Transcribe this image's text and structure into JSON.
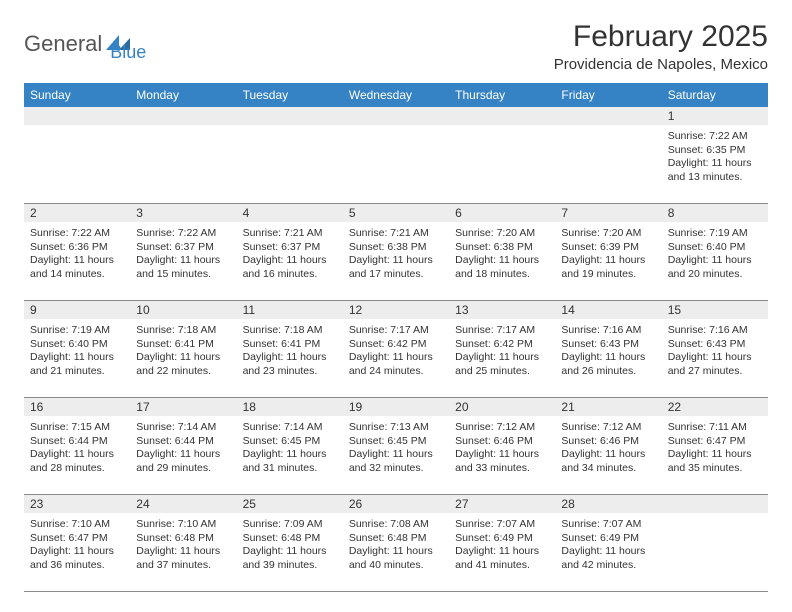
{
  "brand": {
    "part1": "General",
    "part2": "Blue"
  },
  "title": "February 2025",
  "location": "Providencia de Napoles, Mexico",
  "colors": {
    "header_bg": "#3582c4",
    "header_text": "#ffffff",
    "daynum_bg": "#ededed",
    "text": "#333333",
    "divider": "#8a8a8a",
    "background": "#ffffff",
    "brand_blue": "#3582c4",
    "brand_gray": "#555555"
  },
  "typography": {
    "title_fontsize": 30,
    "location_fontsize": 15,
    "header_fontsize": 12,
    "daynum_fontsize": 12,
    "details_fontsize": 10.5
  },
  "day_headers": [
    "Sunday",
    "Monday",
    "Tuesday",
    "Wednesday",
    "Thursday",
    "Friday",
    "Saturday"
  ],
  "weeks": [
    {
      "nums": [
        "",
        "",
        "",
        "",
        "",
        "",
        "1"
      ],
      "details": [
        "",
        "",
        "",
        "",
        "",
        "",
        "Sunrise: 7:22 AM\nSunset: 6:35 PM\nDaylight: 11 hours and 13 minutes."
      ]
    },
    {
      "nums": [
        "2",
        "3",
        "4",
        "5",
        "6",
        "7",
        "8"
      ],
      "details": [
        "Sunrise: 7:22 AM\nSunset: 6:36 PM\nDaylight: 11 hours and 14 minutes.",
        "Sunrise: 7:22 AM\nSunset: 6:37 PM\nDaylight: 11 hours and 15 minutes.",
        "Sunrise: 7:21 AM\nSunset: 6:37 PM\nDaylight: 11 hours and 16 minutes.",
        "Sunrise: 7:21 AM\nSunset: 6:38 PM\nDaylight: 11 hours and 17 minutes.",
        "Sunrise: 7:20 AM\nSunset: 6:38 PM\nDaylight: 11 hours and 18 minutes.",
        "Sunrise: 7:20 AM\nSunset: 6:39 PM\nDaylight: 11 hours and 19 minutes.",
        "Sunrise: 7:19 AM\nSunset: 6:40 PM\nDaylight: 11 hours and 20 minutes."
      ]
    },
    {
      "nums": [
        "9",
        "10",
        "11",
        "12",
        "13",
        "14",
        "15"
      ],
      "details": [
        "Sunrise: 7:19 AM\nSunset: 6:40 PM\nDaylight: 11 hours and 21 minutes.",
        "Sunrise: 7:18 AM\nSunset: 6:41 PM\nDaylight: 11 hours and 22 minutes.",
        "Sunrise: 7:18 AM\nSunset: 6:41 PM\nDaylight: 11 hours and 23 minutes.",
        "Sunrise: 7:17 AM\nSunset: 6:42 PM\nDaylight: 11 hours and 24 minutes.",
        "Sunrise: 7:17 AM\nSunset: 6:42 PM\nDaylight: 11 hours and 25 minutes.",
        "Sunrise: 7:16 AM\nSunset: 6:43 PM\nDaylight: 11 hours and 26 minutes.",
        "Sunrise: 7:16 AM\nSunset: 6:43 PM\nDaylight: 11 hours and 27 minutes."
      ]
    },
    {
      "nums": [
        "16",
        "17",
        "18",
        "19",
        "20",
        "21",
        "22"
      ],
      "details": [
        "Sunrise: 7:15 AM\nSunset: 6:44 PM\nDaylight: 11 hours and 28 minutes.",
        "Sunrise: 7:14 AM\nSunset: 6:44 PM\nDaylight: 11 hours and 29 minutes.",
        "Sunrise: 7:14 AM\nSunset: 6:45 PM\nDaylight: 11 hours and 31 minutes.",
        "Sunrise: 7:13 AM\nSunset: 6:45 PM\nDaylight: 11 hours and 32 minutes.",
        "Sunrise: 7:12 AM\nSunset: 6:46 PM\nDaylight: 11 hours and 33 minutes.",
        "Sunrise: 7:12 AM\nSunset: 6:46 PM\nDaylight: 11 hours and 34 minutes.",
        "Sunrise: 7:11 AM\nSunset: 6:47 PM\nDaylight: 11 hours and 35 minutes."
      ]
    },
    {
      "nums": [
        "23",
        "24",
        "25",
        "26",
        "27",
        "28",
        ""
      ],
      "details": [
        "Sunrise: 7:10 AM\nSunset: 6:47 PM\nDaylight: 11 hours and 36 minutes.",
        "Sunrise: 7:10 AM\nSunset: 6:48 PM\nDaylight: 11 hours and 37 minutes.",
        "Sunrise: 7:09 AM\nSunset: 6:48 PM\nDaylight: 11 hours and 39 minutes.",
        "Sunrise: 7:08 AM\nSunset: 6:48 PM\nDaylight: 11 hours and 40 minutes.",
        "Sunrise: 7:07 AM\nSunset: 6:49 PM\nDaylight: 11 hours and 41 minutes.",
        "Sunrise: 7:07 AM\nSunset: 6:49 PM\nDaylight: 11 hours and 42 minutes.",
        ""
      ]
    }
  ]
}
